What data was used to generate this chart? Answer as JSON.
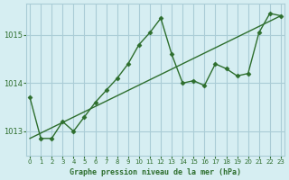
{
  "title": "Graphe pression niveau de la mer (hPa)",
  "bg_color": "#d6eef2",
  "grid_color": "#aaccd6",
  "line_color": "#2d6e2d",
  "x_ticks": [
    0,
    1,
    2,
    3,
    4,
    5,
    6,
    7,
    8,
    9,
    10,
    11,
    12,
    13,
    14,
    15,
    16,
    17,
    18,
    19,
    20,
    21,
    22,
    23
  ],
  "y_ticks": [
    1013,
    1014,
    1015
  ],
  "ylim": [
    1012.5,
    1015.65
  ],
  "xlim": [
    -0.3,
    23.3
  ],
  "series1_x": [
    0,
    1,
    2,
    3,
    4,
    5,
    6,
    7,
    8,
    9,
    10,
    11,
    12,
    13,
    14,
    15,
    16,
    17,
    18,
    19,
    20,
    21,
    22,
    23
  ],
  "series1_y": [
    1013.7,
    1012.85,
    1012.85,
    1013.2,
    1013.0,
    1013.3,
    1013.6,
    1013.85,
    1014.1,
    1014.4,
    1014.8,
    1015.05,
    1015.35,
    1014.6,
    1014.0,
    1014.05,
    1013.95,
    1014.4,
    1014.3,
    1014.15,
    1014.2,
    1015.05,
    1015.45,
    1015.4
  ],
  "trend_x": [
    0,
    23
  ],
  "trend_y": [
    1012.85,
    1015.4
  ]
}
